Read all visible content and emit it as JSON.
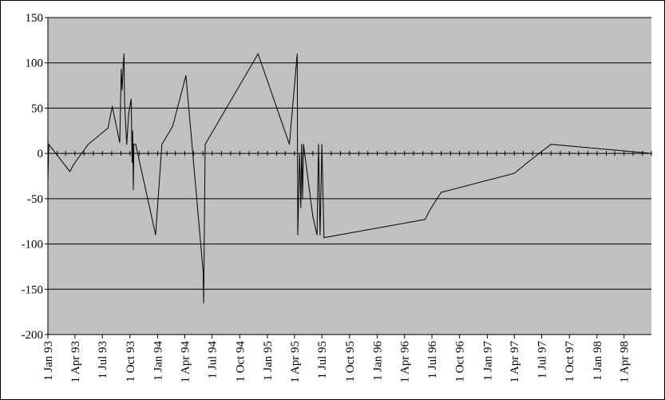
{
  "chart_data": {
    "type": "line",
    "title": "",
    "xlabel": "",
    "ylabel": "",
    "ylim": [
      -200,
      150
    ],
    "yticks": [
      150,
      100,
      50,
      0,
      -50,
      -100,
      -150,
      -200
    ],
    "xlim": [
      "1993-01-01",
      "1998-07-01"
    ],
    "xtick_dates": [
      "1993-01-01",
      "1993-04-01",
      "1993-07-01",
      "1993-10-01",
      "1994-01-01",
      "1994-04-01",
      "1994-07-01",
      "1994-10-01",
      "1995-01-01",
      "1995-04-01",
      "1995-07-01",
      "1995-10-01",
      "1996-01-01",
      "1996-04-01",
      "1996-07-01",
      "1996-10-01",
      "1997-01-01",
      "1997-04-01",
      "1997-07-01",
      "1997-10-01",
      "1998-01-01",
      "1998-04-01"
    ],
    "xtick_labels": [
      "1 Jan 93",
      "1 Apr 93",
      "1 Jul 93",
      "1 Oct 93",
      "1 Jan 94",
      "1 Apr 94",
      "1 Jul 94",
      "1 Oct 94",
      "1 Jan 95",
      "1 Apr 95",
      "1 Jul 95",
      "1 Oct 95",
      "1 Jan 96",
      "1 Apr 96",
      "1 Jul 96",
      "1 Oct 96",
      "1 Jan 97",
      "1 Apr 97",
      "1 Jul 97",
      "1 Oct 97",
      "1 Jan 98",
      "1 Apr 98"
    ],
    "grid": "horizontal",
    "colors": {
      "plot_background": "#c0c0c0",
      "line": "#000000",
      "gridline": "#000000"
    },
    "series": [
      {
        "points": [
          [
            "1993-01-01",
            -30
          ],
          [
            "1993-01-04",
            10
          ],
          [
            "1993-03-15",
            -20
          ],
          [
            "1993-04-01",
            -10
          ],
          [
            "1993-05-15",
            10
          ],
          [
            "1993-07-20",
            28
          ],
          [
            "1993-08-03",
            52
          ],
          [
            "1993-08-28",
            12
          ],
          [
            "1993-09-02",
            93
          ],
          [
            "1993-09-05",
            70
          ],
          [
            "1993-09-08",
            95
          ],
          [
            "1993-09-11",
            110
          ],
          [
            "1993-09-13",
            55
          ],
          [
            "1993-09-20",
            10
          ],
          [
            "1993-09-27",
            45
          ],
          [
            "1993-10-05",
            60
          ],
          [
            "1993-10-08",
            -10
          ],
          [
            "1993-10-10",
            25
          ],
          [
            "1993-10-12",
            -40
          ],
          [
            "1993-10-14",
            10
          ],
          [
            "1993-10-20",
            10
          ],
          [
            "1993-12-25",
            -90
          ],
          [
            "1994-01-15",
            10
          ],
          [
            "1994-02-20",
            30
          ],
          [
            "1994-04-05",
            86
          ],
          [
            "1994-06-01",
            -130
          ],
          [
            "1994-06-03",
            -165
          ],
          [
            "1994-06-08",
            10
          ],
          [
            "1994-12-01",
            110
          ],
          [
            "1995-03-15",
            10
          ],
          [
            "1995-04-10",
            110
          ],
          [
            "1995-04-12",
            -90
          ],
          [
            "1995-04-18",
            0
          ],
          [
            "1995-04-22",
            -60
          ],
          [
            "1995-04-25",
            10
          ],
          [
            "1995-04-28",
            -50
          ],
          [
            "1995-05-01",
            10
          ],
          [
            "1995-06-01",
            -70
          ],
          [
            "1995-06-15",
            -90
          ],
          [
            "1995-06-20",
            10
          ],
          [
            "1995-06-25",
            -90
          ],
          [
            "1995-07-01",
            10
          ],
          [
            "1995-07-08",
            -93
          ],
          [
            "1996-06-08",
            -73
          ],
          [
            "1996-06-25",
            -62
          ],
          [
            "1996-08-01",
            -43
          ],
          [
            "1997-04-01",
            -22
          ],
          [
            "1997-05-15",
            -10
          ],
          [
            "1997-08-01",
            10
          ],
          [
            "1998-07-01",
            0
          ]
        ]
      }
    ]
  }
}
